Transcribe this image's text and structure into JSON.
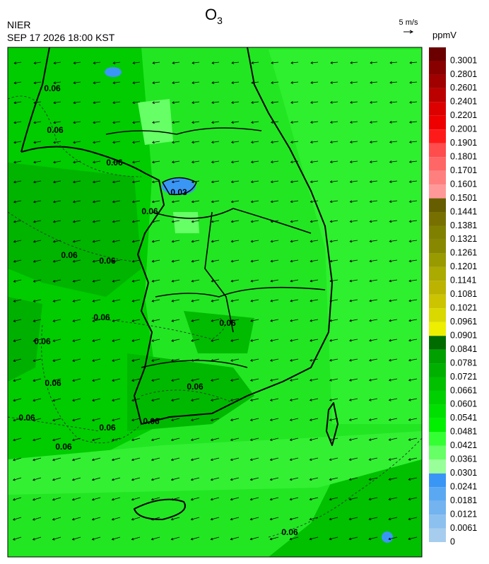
{
  "header": {
    "agency": "NIER",
    "datetime": "SEP 17 2026 18:00 KST",
    "title": {
      "symbol": "O",
      "subscript": "3"
    },
    "vector_scale": "5 m/s"
  },
  "colorbar": {
    "unit": "ppmV",
    "labels": [
      0,
      0.0061,
      0.0121,
      0.0181,
      0.0241,
      0.0301,
      0.0361,
      0.0421,
      0.0481,
      0.0541,
      0.0601,
      0.0661,
      0.0721,
      0.0781,
      0.0841,
      0.0901,
      0.0961,
      0.1021,
      0.1081,
      0.1141,
      0.1201,
      0.1261,
      0.1321,
      0.1381,
      0.1441,
      0.1501,
      0.1601,
      0.1701,
      0.1801,
      0.1901,
      0.2001,
      0.2201,
      0.2401,
      0.2601,
      0.2801,
      0.3001
    ],
    "colors": [
      "#a6cdee",
      "#8cc0ee",
      "#72b3f0",
      "#5aa8f2",
      "#3a96f5",
      "#99ff99",
      "#66ff66",
      "#33ff33",
      "#00f000",
      "#00e000",
      "#00d000",
      "#00c000",
      "#00b000",
      "#00a000",
      "#006c00",
      "#eeee00",
      "#d9d900",
      "#ccc400",
      "#bbb300",
      "#aaaa00",
      "#999900",
      "#888800",
      "#808000",
      "#777000",
      "#665d00",
      "#ff9999",
      "#ff7f7f",
      "#ff6666",
      "#ff4c4c",
      "#ff1a1a",
      "#ee0000",
      "#dd0000",
      "#bb0000",
      "#a00000",
      "#880000",
      "#6a0000"
    ]
  },
  "map": {
    "contour_labels": [
      "0.06",
      "0.06",
      "0.06",
      "0.06",
      "0.06",
      "0.06",
      "0.06",
      "0.06",
      "0.06",
      "0.06",
      "0.06",
      "0.06",
      "0.06",
      "0.06",
      "0.06",
      "0.06",
      "0.03"
    ]
  }
}
